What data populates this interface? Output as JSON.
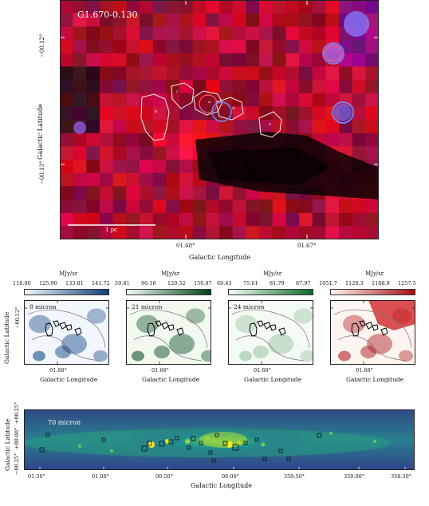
{
  "main_panel": {
    "source_label": "G1.670-0.130",
    "scalebar_label": "1 pc",
    "xlabel": "Galactic Longitude",
    "ylabel": "Galactic Latitude",
    "x_ticks": [
      "01.68°",
      "01.67°"
    ],
    "y_ticks": [
      "−00.12°",
      "−00.13°"
    ],
    "clump_labels": [
      "a",
      "b",
      "c",
      "d",
      "e"
    ]
  },
  "small_panels": [
    {
      "label": "8 micron",
      "unit": "MJy/sr",
      "ticks": [
        "118.00",
        "125.90",
        "133.81",
        "141.72"
      ],
      "cmap": "blues",
      "low": "#f2f7fd",
      "high": "#0b3e7a"
    },
    {
      "label": "21 micron",
      "unit": "MJy/sr",
      "ticks": [
        "59.81",
        "90.16",
        "120.52",
        "150.87"
      ],
      "cmap": "greens",
      "low": "#f2faf0",
      "high": "#00441b"
    },
    {
      "label": "24 micron",
      "unit": "MJy/sr",
      "ticks": [
        "69.43",
        "75.61",
        "81.79",
        "87.97"
      ],
      "cmap": "greens",
      "low": "#f4fbf2",
      "high": "#0d6a2d"
    },
    {
      "label": "70 micron",
      "unit": "MJy/sr",
      "ticks": [
        "1051.7",
        "1120.3",
        "1188.9",
        "1257.5"
      ],
      "cmap": "reds",
      "low": "#fff5f0",
      "high": "#a50f15"
    }
  ],
  "small_common": {
    "y_tick": "−00.12°",
    "x_tick": "01.68°",
    "xlabel": "Galactic Longitude",
    "ylabel": "Galactic Latitude"
  },
  "bottom_panel": {
    "label": "70 micron",
    "xlabel": "Galactic Longitude",
    "ylabel": "Galactic Latitude",
    "x_ticks": [
      "01.50°",
      "01.00°",
      "00.50°",
      "00.00°",
      "359.50°",
      "359.00°",
      "358.50°"
    ],
    "y_ticks": [
      "+00.25°",
      "+00.00°",
      "−00.25°"
    ]
  },
  "chart_data": [
    {
      "type": "heatmap",
      "title": "G1.670-0.130",
      "xlabel": "Galactic Longitude",
      "ylabel": "Galactic Latitude",
      "x_ticks": [
        "01.68°",
        "01.67°"
      ],
      "y_ticks": [
        "−00.12°",
        "−00.13°"
      ],
      "annotations": [
        "a",
        "b",
        "c",
        "d",
        "e",
        "1 pc"
      ]
    },
    {
      "type": "heatmap",
      "title": "8 micron",
      "colorbar_label": "MJy/sr",
      "colorbar_range": [
        118.0,
        141.72
      ]
    },
    {
      "type": "heatmap",
      "title": "21 micron",
      "colorbar_label": "MJy/sr",
      "colorbar_range": [
        59.81,
        150.87
      ]
    },
    {
      "type": "heatmap",
      "title": "24 micron",
      "colorbar_label": "MJy/sr",
      "colorbar_range": [
        69.43,
        87.97
      ]
    },
    {
      "type": "heatmap",
      "title": "70 micron",
      "colorbar_label": "MJy/sr",
      "colorbar_range": [
        1051.7,
        1257.5
      ]
    },
    {
      "type": "heatmap",
      "title": "70 micron",
      "xlabel": "Galactic Longitude",
      "ylabel": "Galactic Latitude",
      "x_ticks": [
        "01.50°",
        "01.00°",
        "00.50°",
        "00.00°",
        "359.50°",
        "359.00°",
        "358.50°"
      ],
      "y_ticks": [
        "+00.25°",
        "+00.00°",
        "−00.25°"
      ]
    }
  ]
}
